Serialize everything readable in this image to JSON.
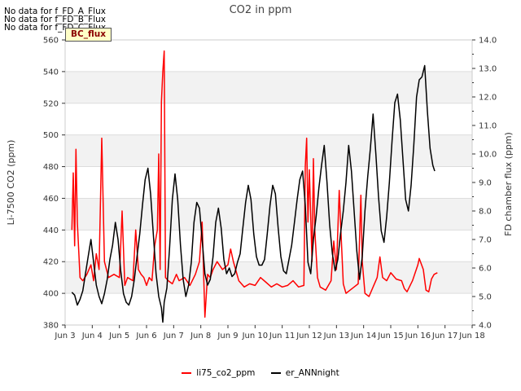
{
  "notes": [
    "No data for f_FD_A_Flux",
    "No data for f_FD_B_Flux",
    "No data for f_FD_C_Flux"
  ],
  "badge_label": "BC_flux",
  "chart_data": {
    "type": "line",
    "title": "CO2 in ppm",
    "xlabel": "",
    "ylabel_left": "Li-7500 CO2 (ppm)",
    "ylabel_right": "FD chamber flux (ppm)",
    "xlim": [
      3,
      18
    ],
    "ylim_left": [
      380,
      560
    ],
    "ylim_right": [
      4.0,
      14.0
    ],
    "x_ticks": [
      3,
      4,
      5,
      6,
      7,
      8,
      9,
      10,
      11,
      12,
      13,
      14,
      15,
      16,
      17,
      18
    ],
    "x_tick_labels": [
      "Jun 3",
      "Jun 4",
      "Jun 5",
      "Jun 6",
      "Jun 7",
      "Jun 8",
      "Jun 9",
      "Jun 10",
      "Jun 11",
      "Jun 12",
      "Jun 13",
      "Jun 14",
      "Jun 15",
      "Jun 16",
      "Jun 17",
      "Jun 18"
    ],
    "y_ticks_left": [
      380,
      400,
      420,
      440,
      460,
      480,
      500,
      520,
      540,
      560
    ],
    "y_ticks_right": [
      4.0,
      5.0,
      6.0,
      7.0,
      8.0,
      9.0,
      10.0,
      11.0,
      12.0,
      13.0,
      14.0
    ],
    "series": [
      {
        "name": "li75_co2_ppm",
        "axis": "left",
        "color": "#ff0000",
        "points": [
          [
            3.25,
            440
          ],
          [
            3.3,
            476
          ],
          [
            3.35,
            430
          ],
          [
            3.4,
            491
          ],
          [
            3.45,
            445
          ],
          [
            3.55,
            410
          ],
          [
            3.65,
            408
          ],
          [
            3.8,
            412
          ],
          [
            3.95,
            418
          ],
          [
            4.05,
            408
          ],
          [
            4.15,
            425
          ],
          [
            4.25,
            415
          ],
          [
            4.35,
            498
          ],
          [
            4.45,
            420
          ],
          [
            4.6,
            410
          ],
          [
            4.8,
            412
          ],
          [
            5.0,
            410
          ],
          [
            5.1,
            452
          ],
          [
            5.2,
            405
          ],
          [
            5.3,
            410
          ],
          [
            5.5,
            408
          ],
          [
            5.6,
            440
          ],
          [
            5.7,
            415
          ],
          [
            5.8,
            412
          ],
          [
            5.9,
            410
          ],
          [
            6.0,
            405
          ],
          [
            6.1,
            410
          ],
          [
            6.2,
            408
          ],
          [
            6.3,
            430
          ],
          [
            6.4,
            440
          ],
          [
            6.45,
            488
          ],
          [
            6.5,
            415
          ],
          [
            6.55,
            521
          ],
          [
            6.6,
            540
          ],
          [
            6.65,
            553
          ],
          [
            6.7,
            410
          ],
          [
            6.8,
            408
          ],
          [
            6.95,
            406
          ],
          [
            7.1,
            412
          ],
          [
            7.2,
            408
          ],
          [
            7.4,
            410
          ],
          [
            7.6,
            405
          ],
          [
            7.8,
            412
          ],
          [
            7.95,
            420
          ],
          [
            8.05,
            445
          ],
          [
            8.15,
            385
          ],
          [
            8.25,
            412
          ],
          [
            8.35,
            410
          ],
          [
            8.45,
            415
          ],
          [
            8.6,
            420
          ],
          [
            8.8,
            415
          ],
          [
            9.0,
            418
          ],
          [
            9.1,
            428
          ],
          [
            9.2,
            420
          ],
          [
            9.4,
            408
          ],
          [
            9.6,
            404
          ],
          [
            9.8,
            406
          ],
          [
            10.0,
            405
          ],
          [
            10.2,
            410
          ],
          [
            10.4,
            407
          ],
          [
            10.6,
            404
          ],
          [
            10.8,
            406
          ],
          [
            11.0,
            404
          ],
          [
            11.2,
            405
          ],
          [
            11.4,
            408
          ],
          [
            11.6,
            404
          ],
          [
            11.8,
            405
          ],
          [
            11.85,
            480
          ],
          [
            11.9,
            498
          ],
          [
            11.95,
            445
          ],
          [
            12.0,
            478
          ],
          [
            12.1,
            420
          ],
          [
            12.15,
            485
          ],
          [
            12.2,
            440
          ],
          [
            12.3,
            410
          ],
          [
            12.4,
            404
          ],
          [
            12.6,
            402
          ],
          [
            12.8,
            408
          ],
          [
            12.9,
            433
          ],
          [
            13.0,
            415
          ],
          [
            13.1,
            465
          ],
          [
            13.15,
            445
          ],
          [
            13.25,
            406
          ],
          [
            13.35,
            400
          ],
          [
            13.5,
            402
          ],
          [
            13.65,
            404
          ],
          [
            13.8,
            406
          ],
          [
            13.9,
            462
          ],
          [
            13.95,
            420
          ],
          [
            14.05,
            400
          ],
          [
            14.2,
            398
          ],
          [
            14.35,
            404
          ],
          [
            14.5,
            410
          ],
          [
            14.6,
            423
          ],
          [
            14.7,
            410
          ],
          [
            14.85,
            408
          ],
          [
            15.0,
            413
          ],
          [
            15.2,
            409
          ],
          [
            15.4,
            408
          ],
          [
            15.5,
            403
          ],
          [
            15.6,
            401
          ],
          [
            15.8,
            408
          ],
          [
            16.0,
            418
          ],
          [
            16.05,
            422
          ],
          [
            16.2,
            415
          ],
          [
            16.3,
            402
          ],
          [
            16.4,
            401
          ],
          [
            16.5,
            409
          ],
          [
            16.6,
            412
          ],
          [
            16.72,
            413
          ]
        ]
      },
      {
        "name": "er_ANNnight",
        "axis": "right",
        "color": "#000000",
        "points": [
          [
            3.25,
            5.15
          ],
          [
            3.35,
            5.05
          ],
          [
            3.45,
            4.7
          ],
          [
            3.55,
            4.9
          ],
          [
            3.65,
            5.2
          ],
          [
            3.75,
            5.8
          ],
          [
            3.85,
            6.4
          ],
          [
            3.95,
            7.0
          ],
          [
            4.05,
            6.2
          ],
          [
            4.15,
            5.4
          ],
          [
            4.25,
            5.0
          ],
          [
            4.35,
            4.75
          ],
          [
            4.45,
            5.1
          ],
          [
            4.55,
            5.6
          ],
          [
            4.65,
            6.3
          ],
          [
            4.75,
            6.8
          ],
          [
            4.85,
            7.6
          ],
          [
            4.95,
            7.0
          ],
          [
            5.05,
            5.9
          ],
          [
            5.15,
            5.1
          ],
          [
            5.25,
            4.8
          ],
          [
            5.35,
            4.7
          ],
          [
            5.45,
            5.0
          ],
          [
            5.55,
            5.6
          ],
          [
            5.65,
            6.4
          ],
          [
            5.75,
            7.2
          ],
          [
            5.85,
            8.2
          ],
          [
            5.95,
            9.1
          ],
          [
            6.05,
            9.5
          ],
          [
            6.15,
            8.6
          ],
          [
            6.25,
            7.2
          ],
          [
            6.35,
            5.8
          ],
          [
            6.45,
            5.0
          ],
          [
            6.55,
            4.6
          ],
          [
            6.6,
            4.1
          ],
          [
            6.65,
            4.8
          ],
          [
            6.75,
            5.3
          ],
          [
            6.85,
            6.7
          ],
          [
            6.95,
            8.4
          ],
          [
            7.05,
            9.3
          ],
          [
            7.15,
            8.4
          ],
          [
            7.25,
            6.8
          ],
          [
            7.35,
            5.6
          ],
          [
            7.45,
            5.0
          ],
          [
            7.55,
            5.4
          ],
          [
            7.65,
            6.2
          ],
          [
            7.75,
            7.6
          ],
          [
            7.85,
            8.3
          ],
          [
            7.95,
            8.1
          ],
          [
            8.05,
            7.0
          ],
          [
            8.15,
            5.8
          ],
          [
            8.25,
            5.4
          ],
          [
            8.35,
            5.6
          ],
          [
            8.45,
            6.4
          ],
          [
            8.55,
            7.6
          ],
          [
            8.65,
            8.1
          ],
          [
            8.75,
            7.4
          ],
          [
            8.85,
            6.3
          ],
          [
            8.95,
            5.8
          ],
          [
            9.05,
            6.0
          ],
          [
            9.15,
            5.7
          ],
          [
            9.25,
            5.8
          ],
          [
            9.35,
            6.2
          ],
          [
            9.45,
            6.5
          ],
          [
            9.55,
            7.4
          ],
          [
            9.65,
            8.3
          ],
          [
            9.75,
            8.9
          ],
          [
            9.85,
            8.4
          ],
          [
            9.95,
            7.2
          ],
          [
            10.05,
            6.4
          ],
          [
            10.15,
            6.1
          ],
          [
            10.25,
            6.1
          ],
          [
            10.35,
            6.3
          ],
          [
            10.45,
            7.2
          ],
          [
            10.55,
            8.2
          ],
          [
            10.65,
            8.9
          ],
          [
            10.75,
            8.6
          ],
          [
            10.85,
            7.4
          ],
          [
            10.95,
            6.4
          ],
          [
            11.05,
            5.9
          ],
          [
            11.15,
            5.8
          ],
          [
            11.25,
            6.3
          ],
          [
            11.35,
            6.8
          ],
          [
            11.45,
            7.6
          ],
          [
            11.55,
            8.4
          ],
          [
            11.65,
            9.1
          ],
          [
            11.75,
            9.4
          ],
          [
            11.85,
            8.2
          ],
          [
            11.95,
            6.2
          ],
          [
            12.05,
            5.8
          ],
          [
            12.15,
            7.0
          ],
          [
            12.25,
            7.8
          ],
          [
            12.35,
            8.8
          ],
          [
            12.45,
            9.6
          ],
          [
            12.55,
            10.3
          ],
          [
            12.65,
            9.0
          ],
          [
            12.75,
            7.5
          ],
          [
            12.85,
            6.5
          ],
          [
            12.95,
            5.9
          ],
          [
            13.05,
            6.3
          ],
          [
            13.15,
            7.2
          ],
          [
            13.25,
            8.0
          ],
          [
            13.35,
            9.0
          ],
          [
            13.45,
            10.3
          ],
          [
            13.55,
            9.4
          ],
          [
            13.65,
            8.0
          ],
          [
            13.75,
            6.6
          ],
          [
            13.85,
            5.6
          ],
          [
            13.95,
            6.4
          ],
          [
            14.05,
            8.0
          ],
          [
            14.15,
            9.2
          ],
          [
            14.25,
            10.2
          ],
          [
            14.35,
            11.4
          ],
          [
            14.45,
            10.0
          ],
          [
            14.55,
            8.5
          ],
          [
            14.65,
            7.3
          ],
          [
            14.75,
            6.9
          ],
          [
            14.85,
            7.8
          ],
          [
            14.95,
            9.0
          ],
          [
            15.05,
            10.5
          ],
          [
            15.15,
            11.8
          ],
          [
            15.25,
            12.1
          ],
          [
            15.35,
            11.2
          ],
          [
            15.45,
            9.8
          ],
          [
            15.55,
            8.4
          ],
          [
            15.65,
            8.0
          ],
          [
            15.75,
            8.9
          ],
          [
            15.85,
            10.3
          ],
          [
            15.95,
            12.0
          ],
          [
            16.05,
            12.6
          ],
          [
            16.15,
            12.7
          ],
          [
            16.25,
            13.1
          ],
          [
            16.35,
            11.5
          ],
          [
            16.45,
            10.2
          ],
          [
            16.55,
            9.6
          ],
          [
            16.62,
            9.4
          ]
        ]
      }
    ]
  }
}
